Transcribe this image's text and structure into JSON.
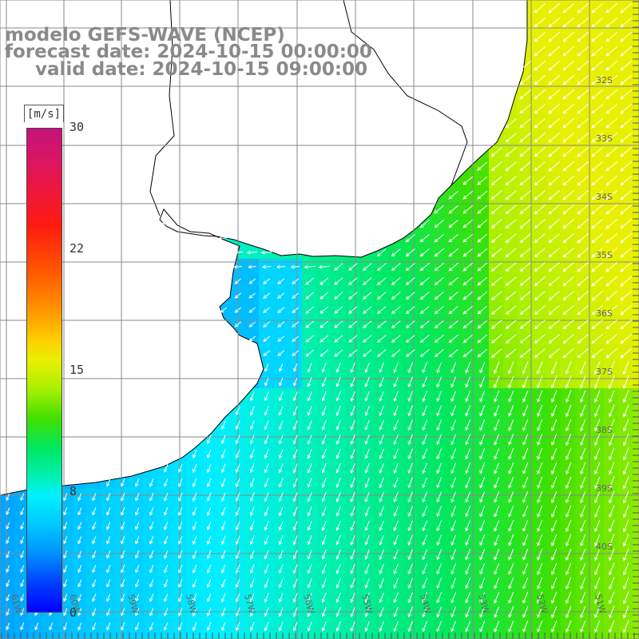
{
  "title": {
    "model": "modelo GEFS-WAVE (NCEP)",
    "forecast": "forecast date: 2024-10-15 00:00:00",
    "valid": "valid date: 2024-10-15 09:00:00"
  },
  "colorbar": {
    "unit": "[m/s]",
    "ticks": [
      "30",
      "22",
      "15",
      "8",
      "0"
    ],
    "tick_values": [
      30,
      22,
      15,
      8,
      0
    ],
    "range": [
      0,
      30
    ],
    "colors": [
      "#0000ff",
      "#0090ff",
      "#00f0ff",
      "#00f0b0",
      "#40e000",
      "#a8f000",
      "#ffd000",
      "#ff5a00",
      "#ff1a10",
      "#c2137e"
    ]
  },
  "map": {
    "variable": "wind speed and direction",
    "wind_direction_general": "from north-east (arrows pointing south-west)",
    "lat_labels": [
      "32S",
      "33S",
      "34S",
      "35S",
      "36S",
      "37S",
      "38S",
      "39S",
      "40S"
    ],
    "lon_labels": [
      "61W",
      "60W",
      "59W",
      "58W",
      "57W",
      "56W",
      "55W",
      "54W",
      "53W",
      "52W",
      "51W"
    ],
    "grid": true,
    "land_color": "#ffffff",
    "coast_color": "#000000"
  }
}
